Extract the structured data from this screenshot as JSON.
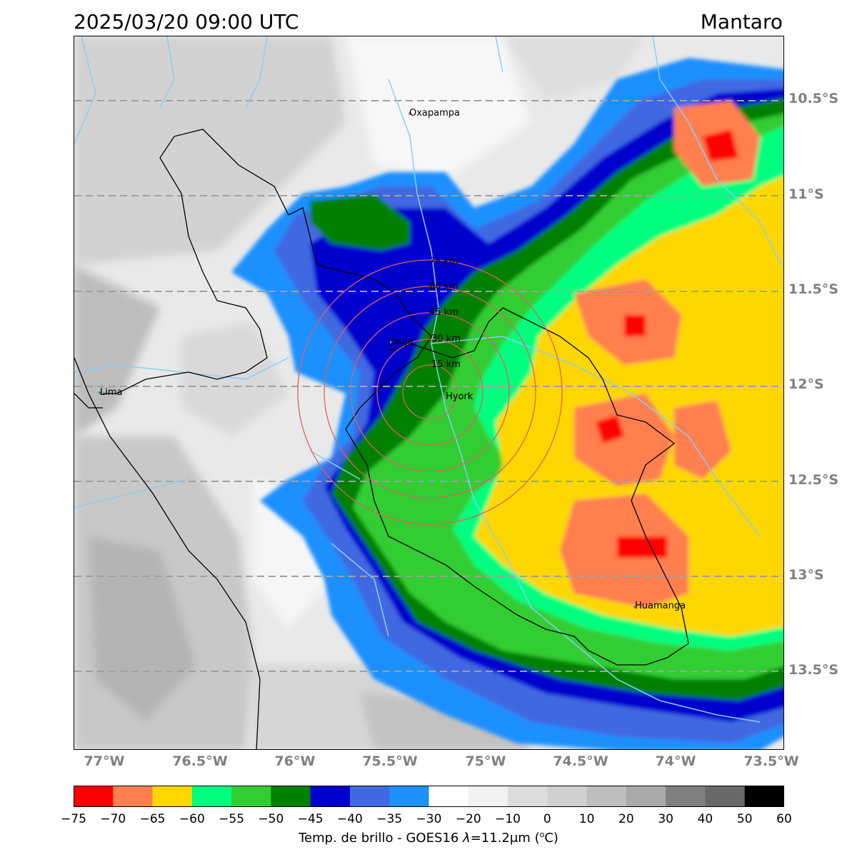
{
  "header": {
    "timestamp": "2025/03/20 09:00 UTC",
    "basin": "Mantaro"
  },
  "map": {
    "latitude_labels": [
      "10.5°S",
      "11°S",
      "11.5°S",
      "12°S",
      "12.5°S",
      "13°S",
      "13.5°S"
    ],
    "longitude_labels": [
      "77°W",
      "76.5°W",
      "76°W",
      "75.5°W",
      "75°W",
      "74.5°W",
      "74°W",
      "73.5°W"
    ],
    "cities": [
      {
        "name": "Oxapampa"
      },
      {
        "name": "Jauja"
      },
      {
        "name": "Hyork"
      },
      {
        "name": "Lima"
      },
      {
        "name": "Huamanga"
      }
    ],
    "range_rings": [
      "15 km",
      "30 km",
      "45 km",
      "60 km",
      "75 km"
    ],
    "ring_color": "#e06060",
    "gridline_color": "#a0a0a0",
    "river_color": "#87cefa"
  },
  "colorbar": {
    "label_prefix": "Temp. de brillo - GOES16 ",
    "label_lambda": "λ",
    "label_value": "=11.2",
    "label_unit": "μm (",
    "label_super": "o",
    "label_end": "C)",
    "ticks": [
      "−75",
      "−70",
      "−65",
      "−60",
      "−55",
      "−50",
      "−45",
      "−40",
      "−35",
      "−30",
      "−20",
      "−10",
      "0",
      "10",
      "20",
      "30",
      "40",
      "50",
      "60"
    ],
    "colors": [
      "#ff0000",
      "#ff7f50",
      "#ffd700",
      "#00ff7f",
      "#32cd32",
      "#008000",
      "#0000cd",
      "#4169e1",
      "#1e90ff",
      "#ffffff",
      "#f2f2f2",
      "#dcdcdc",
      "#d0d0d0",
      "#bebebe",
      "#a9a9a9",
      "#808080",
      "#696969",
      "#000000"
    ]
  }
}
